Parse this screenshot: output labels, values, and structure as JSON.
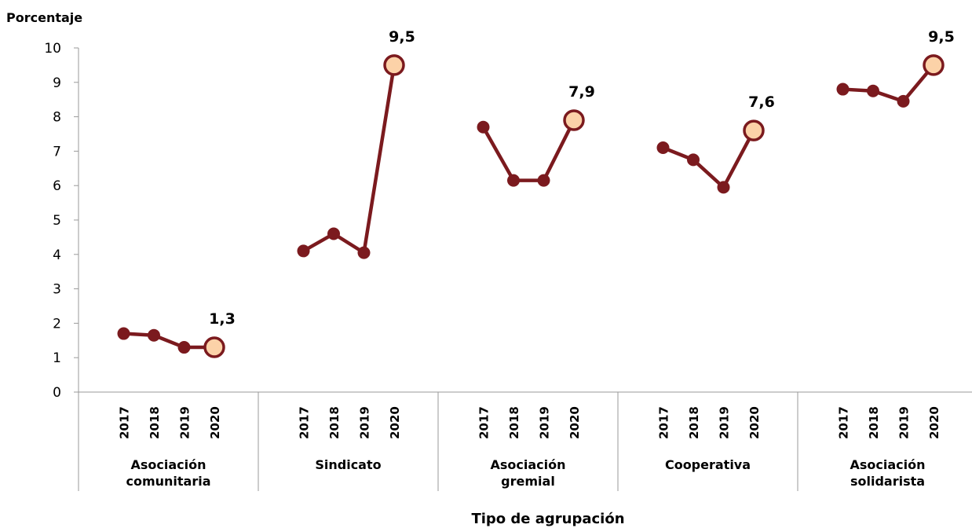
{
  "chart_data": {
    "type": "line",
    "ylabel": "Porcentaje",
    "xlabel": "Tipo de agrupación",
    "ylim": [
      0,
      10
    ],
    "yticks": [
      "0",
      "1",
      "2",
      "3",
      "4",
      "5",
      "6",
      "7",
      "8",
      "9",
      "10"
    ],
    "years": [
      "2017",
      "2018",
      "2019",
      "2020"
    ],
    "groups": [
      {
        "name": [
          "Asociación",
          "comunitaria"
        ],
        "values": [
          1.7,
          1.65,
          1.3,
          1.3
        ],
        "label_2020": "1,3"
      },
      {
        "name": [
          "Sindicato"
        ],
        "values": [
          4.1,
          4.6,
          4.05,
          9.5
        ],
        "label_2020": "9,5"
      },
      {
        "name": [
          "Asociación",
          "gremial"
        ],
        "values": [
          7.7,
          6.15,
          6.15,
          7.9
        ],
        "label_2020": "7,9"
      },
      {
        "name": [
          "Cooperativa"
        ],
        "values": [
          7.1,
          6.75,
          5.95,
          7.6
        ],
        "label_2020": "7,6"
      },
      {
        "name": [
          "Asociación",
          "solidarista"
        ],
        "values": [
          8.8,
          8.75,
          8.45,
          9.5
        ],
        "label_2020": "9,5"
      }
    ],
    "colors": {
      "line": "#7b1a1e",
      "highlight_fill": "#fcd2a8",
      "axis": "#9a9a9a"
    },
    "legend": "none",
    "grid": false
  }
}
